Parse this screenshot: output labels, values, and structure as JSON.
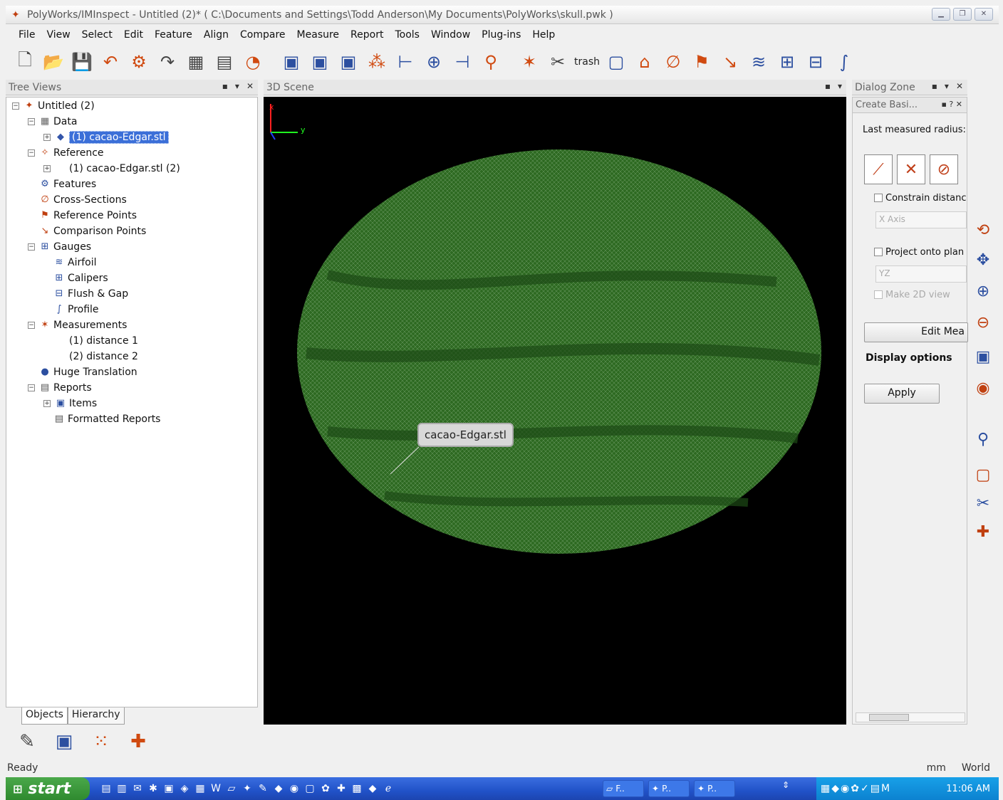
{
  "window": {
    "title": "PolyWorks/IMInspect - Untitled (2)* ( C:\\Documents and Settings\\Todd Anderson\\My Documents\\PolyWorks\\skull.pwk )"
  },
  "menu": [
    "File",
    "View",
    "Select",
    "Edit",
    "Feature",
    "Align",
    "Compare",
    "Measure",
    "Report",
    "Tools",
    "Window",
    "Plug-ins",
    "Help"
  ],
  "toolbar": {
    "trash_label": "trash"
  },
  "panels": {
    "tree": "Tree Views",
    "scene": "3D Scene",
    "dialog_zone": "Dialog Zone",
    "dialog_title": "Create Basi..."
  },
  "tree": [
    {
      "label": "Untitled (2)",
      "icon": "project-icon"
    },
    {
      "label": "Data",
      "icon": "data-icon"
    },
    {
      "label": "(1) cacao-Edgar.stl",
      "icon": "mesh-icon",
      "selected": true
    },
    {
      "label": "Reference",
      "icon": "reference-icon"
    },
    {
      "label": "(1) cacao-Edgar.stl (2)",
      "icon": ""
    },
    {
      "label": "Features",
      "icon": "features-icon"
    },
    {
      "label": "Cross-Sections",
      "icon": "cross-sections-icon"
    },
    {
      "label": "Reference Points",
      "icon": "reference-points-icon"
    },
    {
      "label": "Comparison Points",
      "icon": "comparison-points-icon"
    },
    {
      "label": "Gauges",
      "icon": "gauges-icon"
    },
    {
      "label": "Airfoil",
      "icon": "airfoil-icon"
    },
    {
      "label": "Calipers",
      "icon": "calipers-icon"
    },
    {
      "label": "Flush & Gap",
      "icon": "flush-gap-icon"
    },
    {
      "label": "Profile",
      "icon": "profile-icon"
    },
    {
      "label": "Measurements",
      "icon": "measurements-icon"
    },
    {
      "label": "(1) distance 1",
      "icon": ""
    },
    {
      "label": "(2) distance 2",
      "icon": ""
    },
    {
      "label": "Huge Translation",
      "icon": "globe-icon"
    },
    {
      "label": "Reports",
      "icon": "reports-icon"
    },
    {
      "label": "Items",
      "icon": "items-icon"
    },
    {
      "label": "Formatted Reports",
      "icon": "formatted-reports-icon"
    }
  ],
  "tabs": [
    "Objects",
    "Hierarchy"
  ],
  "scene": {
    "axis_x": "x",
    "axis_y": "y",
    "tooltip": "cacao-Edgar.stl",
    "mesh_color": "#2e6a22"
  },
  "dialog": {
    "last_radius": "Last measured radius:",
    "constrain": "Constrain distanc",
    "constrain_axis": "X Axis",
    "project": "Project onto plan",
    "project_plane": "YZ",
    "make2d": "Make 2D view",
    "edit_meas": "Edit Mea",
    "display_options": "Display options",
    "apply": "Apply"
  },
  "status": {
    "left": "Ready",
    "units": "mm",
    "frame": "World"
  },
  "taskbar": {
    "start": "start",
    "tasks": [
      "F..",
      "P..",
      "P.."
    ],
    "clock": "11:06 AM"
  }
}
